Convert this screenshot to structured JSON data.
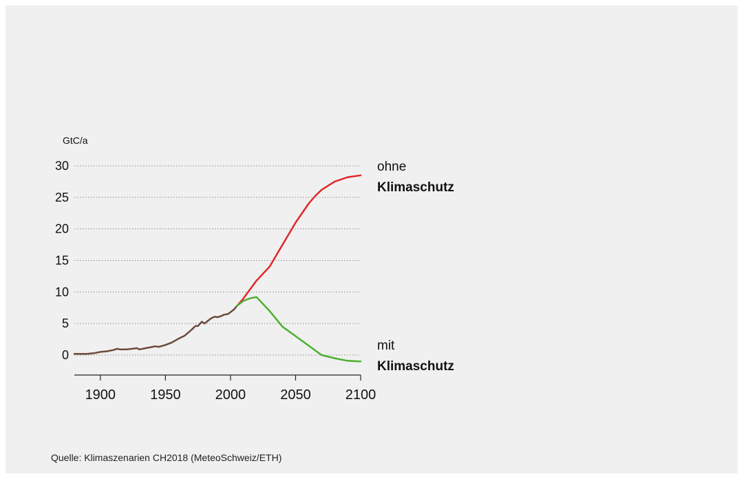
{
  "chart_data": {
    "type": "line",
    "ylabel": "GtC/a",
    "xlim": [
      1880,
      2100
    ],
    "ylim": [
      -3,
      30
    ],
    "yticks": [
      0,
      5,
      10,
      15,
      20,
      25,
      30
    ],
    "xticks": [
      1900,
      1950,
      2000,
      2050,
      2100
    ],
    "ytick_labels": [
      "0",
      "5",
      "10",
      "15",
      "20",
      "25",
      "30"
    ],
    "xtick_labels": [
      "1900",
      "1950",
      "2000",
      "2050",
      "2100"
    ],
    "grid": "horizontal dotted",
    "series": [
      {
        "name": "",
        "color": "#6b4a3a",
        "x": [
          1880,
          1890,
          1895,
          1900,
          1905,
          1910,
          1913,
          1915,
          1920,
          1925,
          1928,
          1930,
          1935,
          1940,
          1942,
          1945,
          1950,
          1955,
          1960,
          1965,
          1970,
          1973,
          1975,
          1978,
          1980,
          1983,
          1985,
          1988,
          1990,
          1993,
          1995,
          1998,
          2000,
          2003,
          2005
        ],
        "y": [
          0.2,
          0.2,
          0.3,
          0.5,
          0.6,
          0.8,
          1.0,
          0.9,
          0.9,
          1.0,
          1.1,
          0.9,
          1.1,
          1.3,
          1.4,
          1.3,
          1.6,
          2.0,
          2.6,
          3.1,
          4.0,
          4.6,
          4.6,
          5.3,
          5.0,
          5.5,
          5.8,
          6.1,
          6.0,
          6.2,
          6.4,
          6.5,
          6.8,
          7.3,
          7.8
        ]
      },
      {
        "name": "ohne Klimaschutz",
        "color": "#e0262a",
        "x": [
          2005,
          2010,
          2020,
          2030,
          2040,
          2050,
          2060,
          2065,
          2070,
          2080,
          2090,
          2100
        ],
        "y": [
          7.8,
          9.0,
          11.8,
          14.0,
          17.5,
          21.0,
          24.0,
          25.2,
          26.2,
          27.5,
          28.2,
          28.5
        ]
      },
      {
        "name": "mit Klimaschutz",
        "color": "#4caf2f",
        "x": [
          2005,
          2010,
          2015,
          2020,
          2030,
          2040,
          2050,
          2060,
          2070,
          2080,
          2090,
          2100
        ],
        "y": [
          7.8,
          8.6,
          9.0,
          9.2,
          7.0,
          4.5,
          3.0,
          1.5,
          0.0,
          -0.5,
          -0.9,
          -1.0
        ]
      }
    ]
  },
  "source_text": "Quelle: Klimaszenarien CH2018 (MeteoSchweiz/ETH)"
}
